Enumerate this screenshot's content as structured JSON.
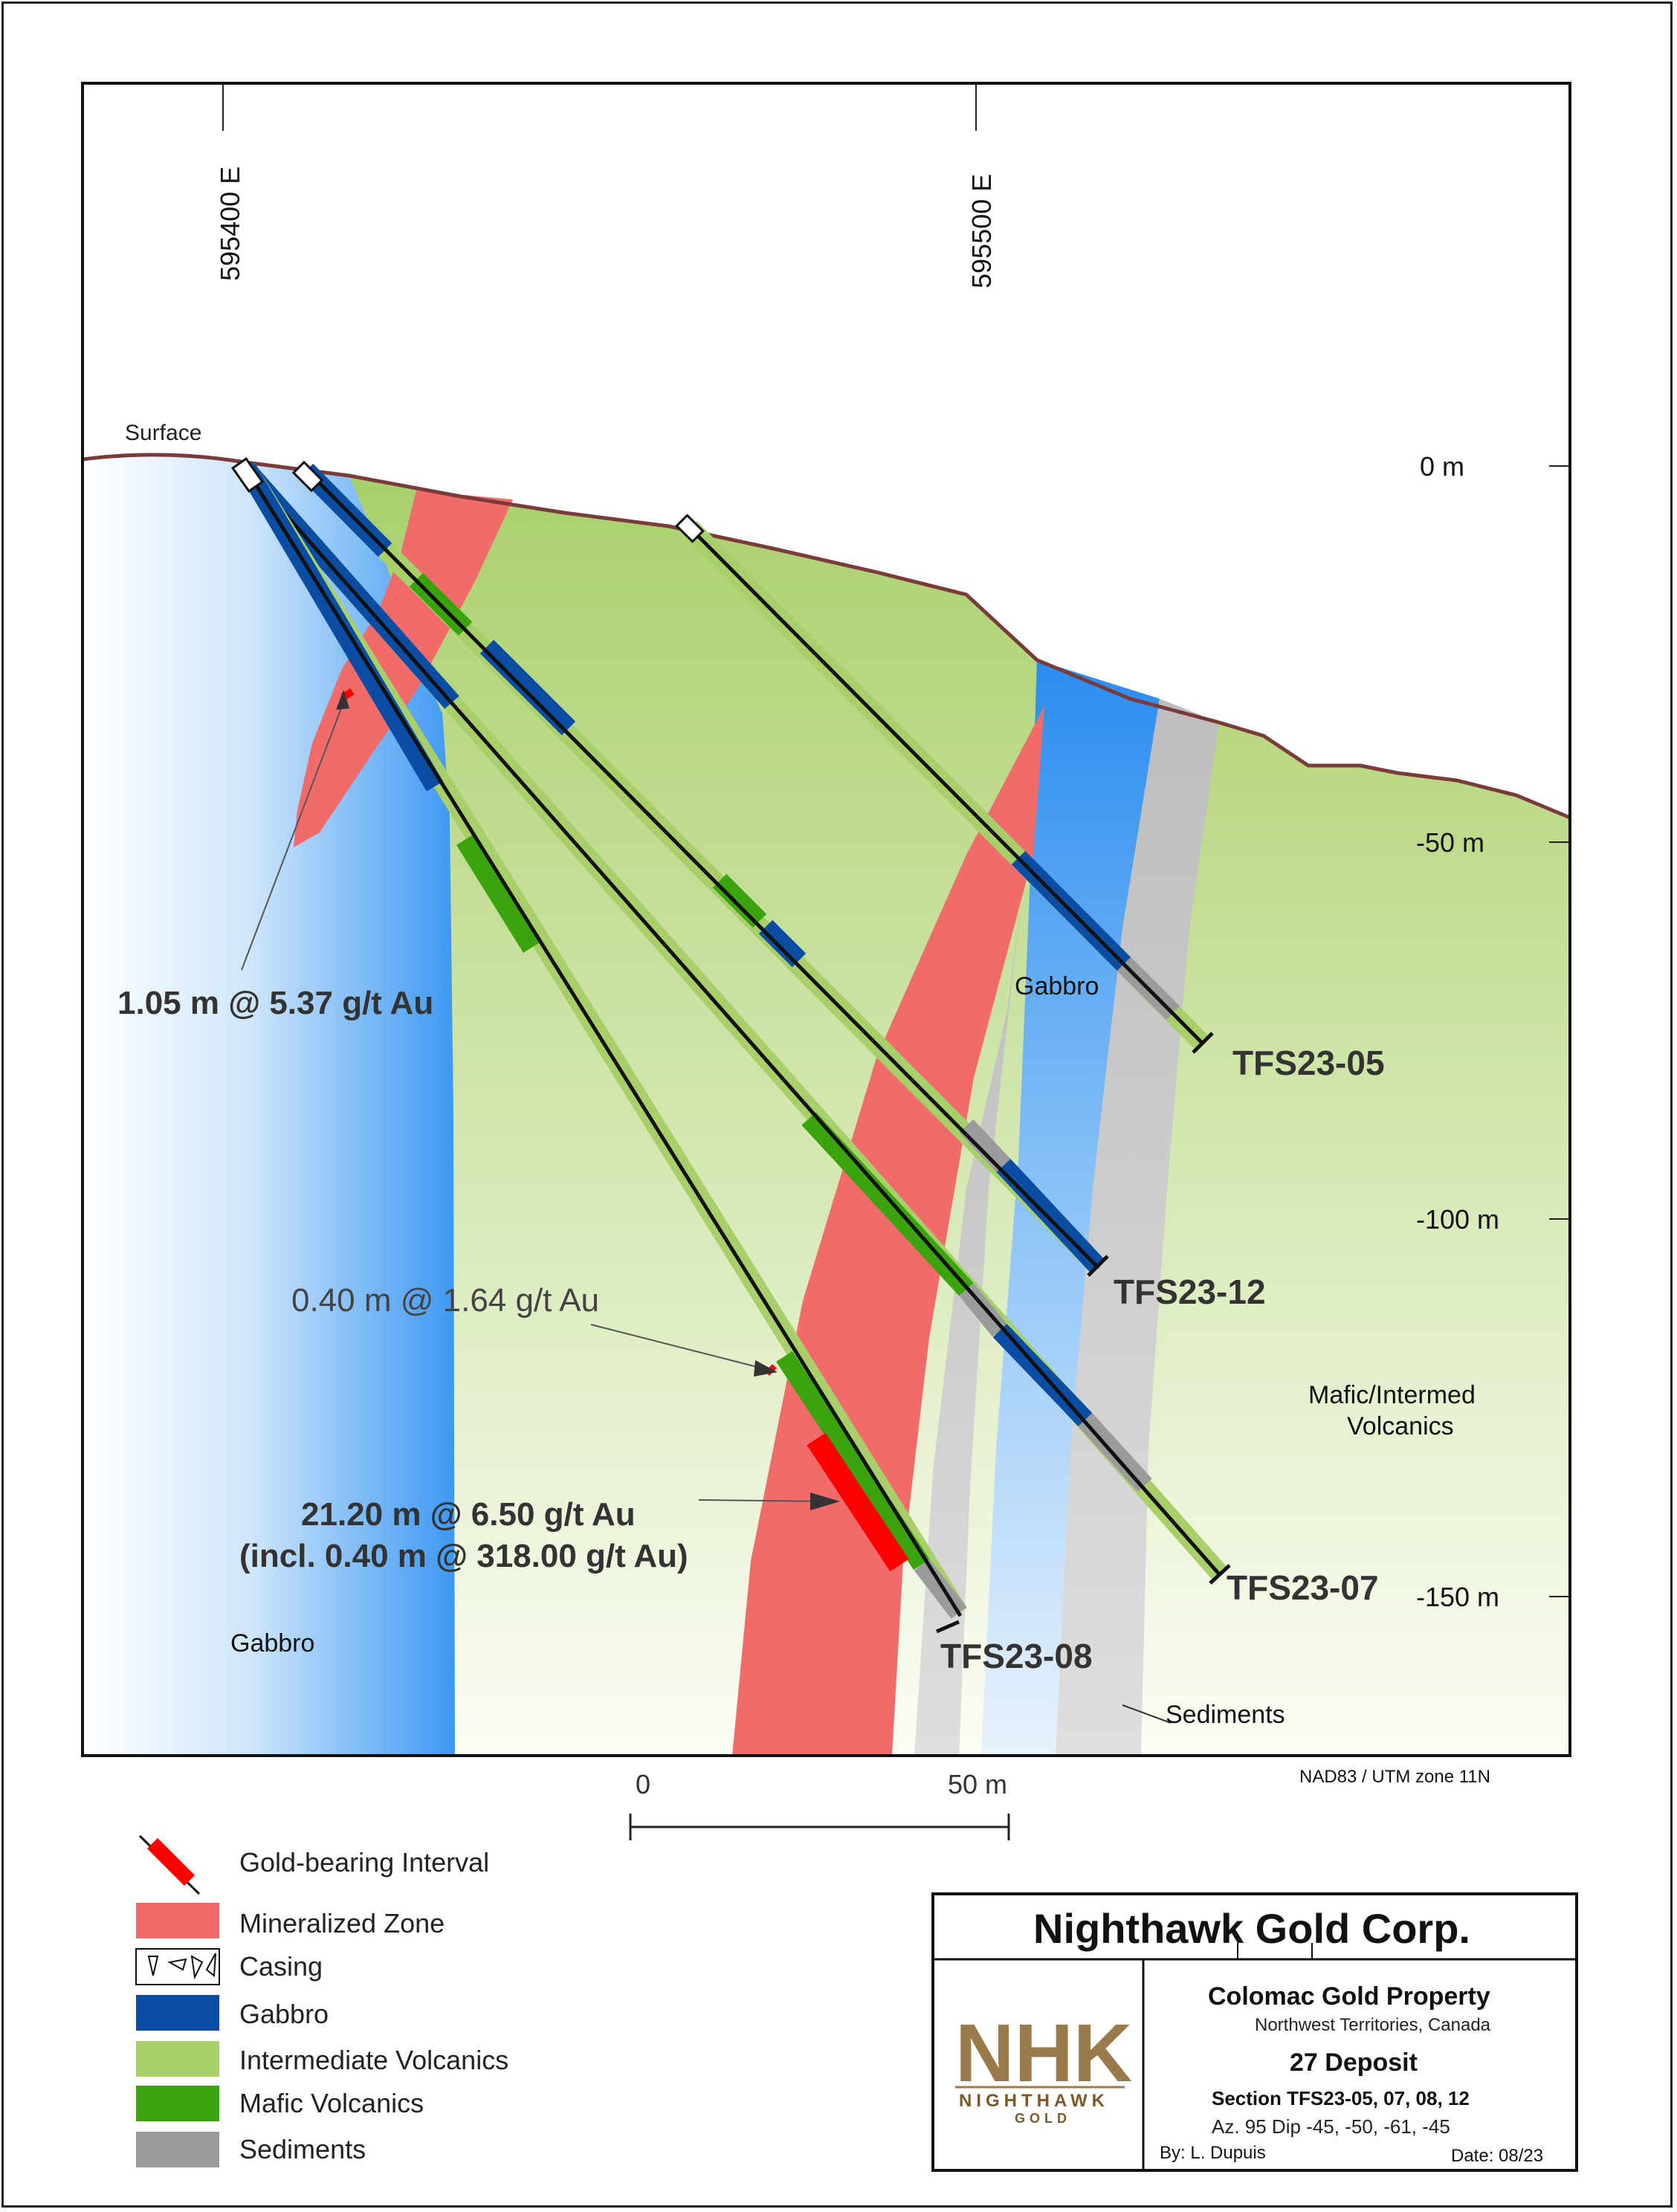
{
  "grid": {
    "easting_labels": [
      "595400 E",
      "595500 E"
    ],
    "elevation_labels": [
      "0 m",
      "-50 m",
      "-100 m",
      "-150 m"
    ]
  },
  "labels": {
    "surface": "Surface",
    "gabbro_left": "Gabbro",
    "gabbro_right": "Gabbro",
    "mafic_line1": "Mafic/Intermed",
    "mafic_line2": "Volcanics",
    "sediments": "Sediments",
    "projection": "NAD83 / UTM zone 11N"
  },
  "drill_holes": [
    {
      "id": "TFS23-05"
    },
    {
      "id": "TFS23-12"
    },
    {
      "id": "TFS23-07"
    },
    {
      "id": "TFS23-08"
    }
  ],
  "intercepts": {
    "a": "1.05 m  @ 5.37 g/t Au",
    "b": "0.40 m  @ 1.64 g/t Au",
    "c_line1": "21.20 m  @ 6.50 g/t Au",
    "c_line2": "(incl. 0.40 m @ 318.00 g/t Au)"
  },
  "scale_bar": {
    "start": "0",
    "end": "50 m"
  },
  "legend": {
    "items": [
      {
        "label": "Gold-bearing Interval",
        "color": "#ff0000"
      },
      {
        "label": "Mineralized Zone",
        "color": "#f26b6b"
      },
      {
        "label": "Casing",
        "color": "#ffffff"
      },
      {
        "label": "Gabbro",
        "color": "#0b4da2"
      },
      {
        "label": "Intermediate Volcanics",
        "color": "#a8cf6a"
      },
      {
        "label": "Mafic Volcanics",
        "color": "#3aa30e"
      },
      {
        "label": "Sediments",
        "color": "#9b9b9b"
      }
    ]
  },
  "title_block": {
    "company": "Nighthawk Gold Corp.",
    "logo_text": "NIGHTHAWK",
    "logo_sub": "GOLD",
    "property": "Colomac Gold Property",
    "region": "Northwest Territories, Canada",
    "deposit": "27 Deposit",
    "section": "Section TFS23-05, 07, 08, 12",
    "orientation": "Az. 95 Dip -45, -50, -61, -45",
    "author": "By: L. Dupuis",
    "date": "Date: 08/23"
  },
  "colors": {
    "gabbro_dark": "#0b4da2",
    "gabbro_light": "#3d9bf5",
    "intermediate": "#a8cf6a",
    "mafic": "#3aa30e",
    "sediment": "#9b9b9b",
    "mineralized": "#f26b6b",
    "gold_interval": "#ff0000",
    "surface_line": "#7a3b3b"
  }
}
